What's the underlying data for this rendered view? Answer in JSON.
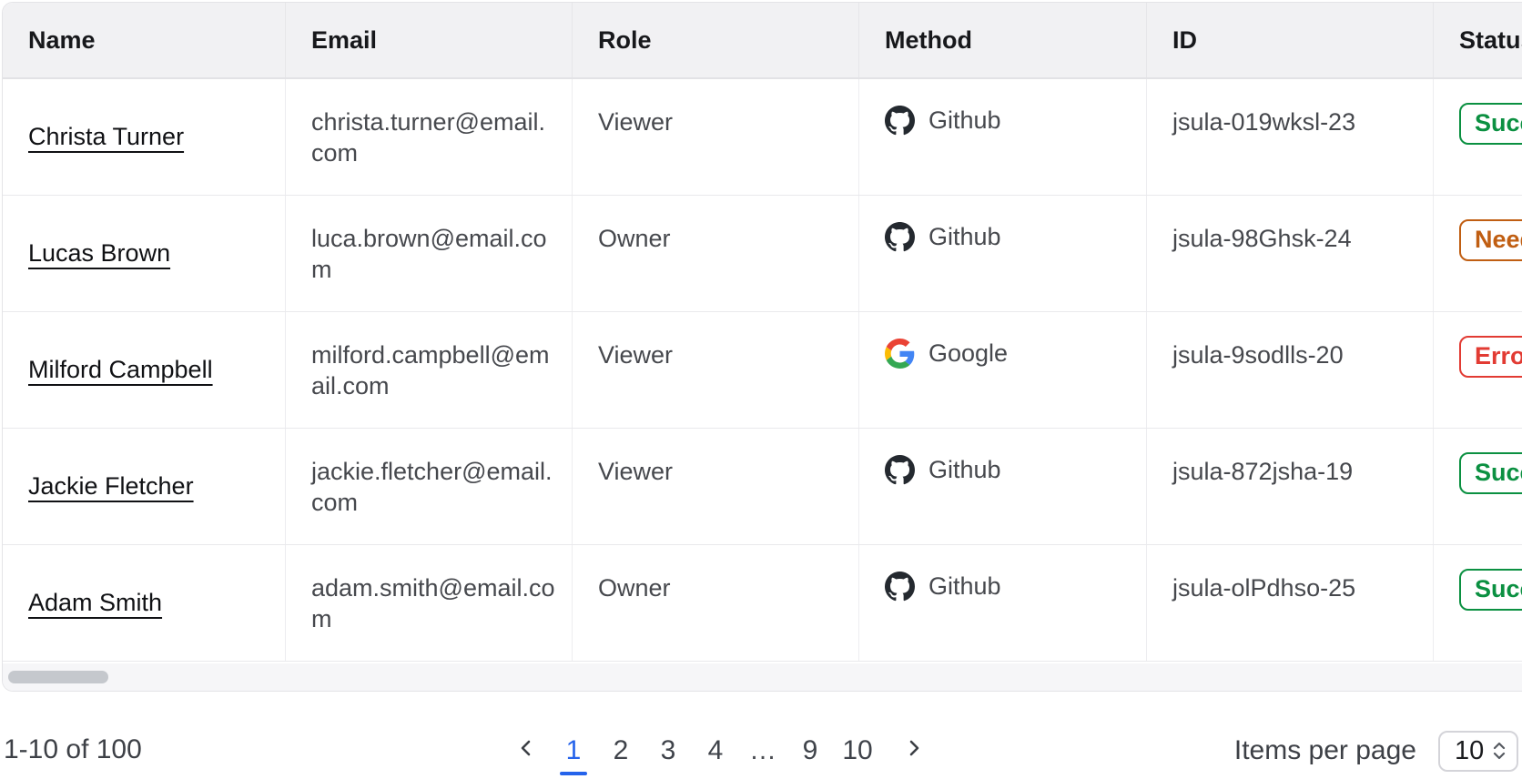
{
  "colors": {
    "accent_blue": "#2563eb",
    "success_green": "#0b9041",
    "warning_orange": "#c05e12",
    "error_red": "#e23b33"
  },
  "table": {
    "columns": [
      {
        "key": "name",
        "label": "Name"
      },
      {
        "key": "email",
        "label": "Email"
      },
      {
        "key": "role",
        "label": "Role"
      },
      {
        "key": "method",
        "label": "Method"
      },
      {
        "key": "id",
        "label": "ID"
      },
      {
        "key": "status",
        "label": "Status"
      }
    ],
    "rows": [
      {
        "name": "Christa Turner",
        "email": "christa.turner@email.com",
        "role": "Viewer",
        "method": "Github",
        "method_icon": "github-icon",
        "id": "jsula-019wksl-23",
        "status": {
          "label": "Success",
          "tone": "success"
        }
      },
      {
        "name": "Lucas Brown",
        "email": "luca.brown@email.com",
        "role": "Owner",
        "method": "Github",
        "method_icon": "github-icon",
        "id": "jsula-98Ghsk-24",
        "status": {
          "label": "Needs attention",
          "tone": "warning"
        }
      },
      {
        "name": "Milford Campbell",
        "email": "milford.campbell@email.com",
        "role": "Viewer",
        "method": "Google",
        "method_icon": "google-icon",
        "id": "jsula-9sodlls-20",
        "status": {
          "label": "Error",
          "tone": "error"
        }
      },
      {
        "name": "Jackie Fletcher",
        "email": "jackie.fletcher@email.com",
        "role": "Viewer",
        "method": "Github",
        "method_icon": "github-icon",
        "id": "jsula-872jsha-19",
        "status": {
          "label": "Success",
          "tone": "success"
        }
      },
      {
        "name": "Adam Smith",
        "email": "adam.smith@email.com",
        "role": "Owner",
        "method": "Github",
        "method_icon": "github-icon",
        "id": "jsula-olPdhso-25",
        "status": {
          "label": "Success",
          "tone": "success"
        }
      }
    ]
  },
  "pagination": {
    "range_label": "1-10 of 100",
    "pages": [
      "1",
      "2",
      "3",
      "4",
      "…",
      "9",
      "10"
    ],
    "active_page": "1",
    "prev_icon": "chevron-left-icon",
    "next_icon": "chevron-right-icon",
    "items_per_page_label": "Items per page",
    "items_per_page_value": "10"
  }
}
